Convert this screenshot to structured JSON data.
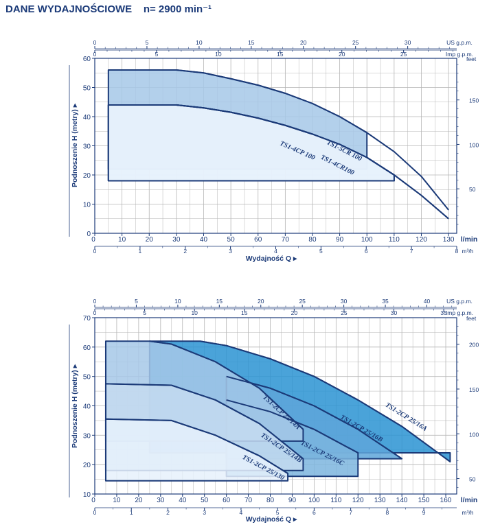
{
  "title": "DANE WYDAJNOŚCIOWE    n= 2900 min⁻¹",
  "colors": {
    "ink": "#1b3a78",
    "grid": "#b5b5b5",
    "fill_light": "#e6f1fb",
    "fill_mid": "#a6c8e8",
    "fill_dark": "#2a93d2"
  },
  "chart_data": [
    {
      "type": "area",
      "yaxis": {
        "label": "Podnoszenie H (metry)",
        "ylim": [
          0,
          60
        ],
        "ticks": [
          0,
          10,
          20,
          30,
          40,
          50,
          60
        ]
      },
      "yaxis_right": {
        "unit": "feet",
        "ticks": [
          50,
          100,
          150
        ]
      },
      "xaxis_lmin": {
        "unit": "l/min",
        "ticks": [
          0,
          10,
          20,
          30,
          40,
          50,
          60,
          70,
          80,
          90,
          100,
          110,
          120,
          130
        ],
        "xlim": [
          0,
          133
        ]
      },
      "xaxis_m3h": {
        "unit": "m³/h",
        "ticks": [
          0,
          1,
          2,
          3,
          4,
          5,
          6,
          7,
          8
        ]
      },
      "xaxis_usgpm": {
        "unit": "US g.p.m.",
        "ticks": [
          0,
          5,
          10,
          15,
          20,
          25,
          30
        ]
      },
      "xaxis_impgpm": {
        "unit": "Imp g.p.m.",
        "ticks": [
          0,
          5,
          10,
          15,
          20,
          25
        ]
      },
      "xlabel": "Wydajność Q",
      "series": [
        {
          "name": "TS1-5CR 100",
          "fill": "#a6c8e8",
          "curve": [
            [
              30,
              56
            ],
            [
              40,
              55
            ],
            [
              50,
              53
            ],
            [
              60,
              50.8
            ],
            [
              70,
              48
            ],
            [
              80,
              44.5
            ],
            [
              90,
              40
            ],
            [
              100,
              34.5
            ],
            [
              110,
              28
            ],
            [
              120,
              19.5
            ],
            [
              130,
              8
            ]
          ],
          "region_q": [
            5,
            100
          ],
          "region_hmin": 22
        },
        {
          "name": "TS1-4CP 100",
          "fill": "#e6f1fb",
          "curve": [
            [
              30,
              44
            ],
            [
              40,
              43
            ],
            [
              50,
              41.5
            ],
            [
              60,
              39.5
            ],
            [
              70,
              37
            ],
            [
              80,
              34
            ],
            [
              90,
              30.5
            ],
            [
              100,
              26
            ],
            [
              110,
              20
            ],
            [
              120,
              13
            ],
            [
              130,
              5
            ]
          ],
          "region_q": [
            5,
            110
          ],
          "region_hmin": 18
        },
        {
          "name": "TS1-4CR100",
          "fill": "#e6f1fb",
          "curve": [
            [
              30,
              44
            ],
            [
              40,
              43
            ],
            [
              50,
              41.5
            ],
            [
              60,
              39.5
            ],
            [
              70,
              37
            ],
            [
              80,
              34
            ],
            [
              90,
              30.5
            ],
            [
              100,
              26
            ],
            [
              110,
              20
            ],
            [
              120,
              13
            ],
            [
              130,
              5
            ]
          ],
          "region_q": [
            5,
            110
          ],
          "region_hmin": 18
        }
      ],
      "curve_labels": [
        "TS1-5CR 100",
        "TS1-4CP 100",
        "TS1-4CR100"
      ]
    },
    {
      "type": "area",
      "yaxis": {
        "label": "Podnoszenie H (metry)",
        "ylim": [
          10,
          70
        ],
        "ticks": [
          10,
          20,
          30,
          40,
          50,
          60,
          70
        ]
      },
      "yaxis_right": {
        "unit": "feet",
        "ticks": [
          50,
          100,
          150,
          200
        ]
      },
      "xaxis_lmin": {
        "unit": "l/min",
        "ticks": [
          0,
          10,
          20,
          30,
          40,
          50,
          60,
          70,
          80,
          90,
          100,
          110,
          120,
          130,
          140,
          150,
          160
        ],
        "xlim": [
          0,
          165
        ]
      },
      "xaxis_m3h": {
        "unit": "m³/h",
        "ticks": [
          0,
          1,
          2,
          3,
          4,
          5,
          6,
          7,
          8,
          9
        ]
      },
      "xaxis_usgpm": {
        "unit": "US g.p.m.",
        "ticks": [
          0,
          5,
          10,
          15,
          20,
          25,
          30,
          35,
          40
        ]
      },
      "xaxis_impgpm": {
        "unit": "Imp g.p.m.",
        "ticks": [
          0,
          5,
          10,
          15,
          20,
          25,
          30,
          35
        ]
      },
      "xlabel": "Wydajność Q",
      "series": [
        {
          "name": "TS1-2CP 25/16A",
          "fill": "#2a93d2",
          "curve": [
            [
              48,
              62
            ],
            [
              60,
              60.5
            ],
            [
              80,
              56
            ],
            [
              100,
              50
            ],
            [
              120,
              42
            ],
            [
              140,
              33
            ],
            [
              162,
              21
            ]
          ],
          "region_q": [
            25,
            162
          ],
          "region_hmin": 24
        },
        {
          "name": "TS1-2CP 25/16B",
          "fill": "#5ea6d9",
          "curve": [
            [
              60,
              50
            ],
            [
              80,
              46
            ],
            [
              100,
              40
            ],
            [
              120,
              32
            ],
            [
              140,
              22
            ]
          ],
          "region_q": [
            60,
            140
          ],
          "region_hmin": 22
        },
        {
          "name": "TS1-2CP 25/16C",
          "fill": "#7db5de",
          "curve": [
            [
              60,
              42
            ],
            [
              80,
              38
            ],
            [
              100,
              32
            ],
            [
              120,
              24
            ]
          ],
          "region_q": [
            60,
            120
          ],
          "region_hmin": 16
        },
        {
          "name": "TS1-2CP 25/14A",
          "fill": "#a6c8e8",
          "curve": [
            [
              25,
              62
            ],
            [
              35,
              61
            ],
            [
              55,
              55
            ],
            [
              75,
              46
            ],
            [
              95,
              32
            ]
          ],
          "region_q": [
            5,
            95
          ],
          "region_hmin": 28
        },
        {
          "name": "TS1-2CP 25/14B",
          "fill": "#c4daf0",
          "curve": [
            [
              5,
              47.5
            ],
            [
              35,
              47
            ],
            [
              55,
              42
            ],
            [
              75,
              34
            ],
            [
              95,
              22
            ]
          ],
          "region_q": [
            5,
            95
          ],
          "region_hmin": 18
        },
        {
          "name": "TS1-2CP 25/130",
          "fill": "#e6f1fb",
          "curve": [
            [
              5,
              35.5
            ],
            [
              35,
              35
            ],
            [
              55,
              30
            ],
            [
              75,
              23
            ],
            [
              88,
              17
            ]
          ],
          "region_q": [
            5,
            88
          ],
          "region_hmin": 14.5
        }
      ],
      "curve_labels": [
        "TS1-2CP 25/16A",
        "TS1-2CP 25/16B",
        "TS1-2CP 25/16C",
        "TS1-2CP 25/14A",
        "TS1-2CP 25/14B",
        "TS1-2CP 25/130"
      ]
    }
  ]
}
